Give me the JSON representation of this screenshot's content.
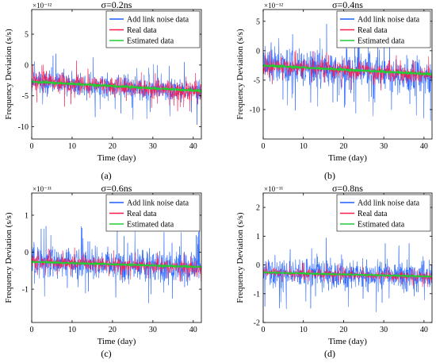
{
  "chart_data": [
    {
      "type": "line",
      "panel_label": "(a)",
      "title": "σ=0.2ns",
      "xlabel": "Time (day)",
      "ylabel": "Frequency Deviation (s/s)",
      "multiplier": "×10⁻¹²",
      "xlim": [
        0,
        42
      ],
      "ylim": [
        -12,
        9
      ],
      "xticks": [
        0,
        10,
        20,
        30,
        40
      ],
      "yticks": [
        -10,
        -5,
        0,
        5
      ],
      "legend_position": "top-right",
      "series": [
        {
          "name": "Add link noise data",
          "color": "#1f5fff",
          "x": [
            0,
            42
          ],
          "y_trend": [
            -2.6,
            -4.4
          ],
          "spread": 2.7,
          "spike": 4.5
        },
        {
          "name": "Real data",
          "color": "#ff1a4d",
          "x": [
            0,
            42
          ],
          "y_trend": [
            -2.6,
            -4.4
          ],
          "spread": 2.2,
          "spike": 3.2
        },
        {
          "name": "Estimated data",
          "color": "#22cc33",
          "x": [
            0,
            42
          ],
          "y_trend": [
            -2.7,
            -4.2
          ],
          "spread": 0.18,
          "spike": 0.25
        }
      ]
    },
    {
      "type": "line",
      "panel_label": "(b)",
      "title": "σ=0.4ns",
      "xlabel": "Time (day)",
      "ylabel": "Frequency Deviation (s/s)",
      "multiplier": "×10⁻¹²",
      "xlim": [
        0,
        42
      ],
      "ylim": [
        -15,
        7
      ],
      "xticks": [
        0,
        10,
        20,
        30,
        40
      ],
      "yticks": [
        -10,
        -5,
        0,
        5
      ],
      "legend_position": "top-right",
      "series": [
        {
          "name": "Add link noise data",
          "color": "#1f5fff",
          "x": [
            0,
            42
          ],
          "y_trend": [
            -2.4,
            -4.2
          ],
          "spread": 4.5,
          "spike": 6.5
        },
        {
          "name": "Real data",
          "color": "#ff1a4d",
          "x": [
            0,
            42
          ],
          "y_trend": [
            -2.4,
            -4.2
          ],
          "spread": 2.0,
          "spike": 2.8
        },
        {
          "name": "Estimated data",
          "color": "#22cc33",
          "x": [
            0,
            42
          ],
          "y_trend": [
            -2.5,
            -4.0
          ],
          "spread": 0.2,
          "spike": 0.25
        }
      ]
    },
    {
      "type": "line",
      "panel_label": "(c)",
      "title": "σ=0.6ns",
      "xlabel": "Time (day)",
      "ylabel": "Frequency Deviation (s/s)",
      "multiplier": "×10⁻¹¹",
      "xlim": [
        0,
        42
      ],
      "ylim": [
        -1.9,
        1.6
      ],
      "xticks": [
        0,
        10,
        20,
        30,
        40
      ],
      "yticks": [
        -1,
        0,
        1
      ],
      "legend_position": "top-right",
      "series": [
        {
          "name": "Add link noise data",
          "color": "#1f5fff",
          "x": [
            0,
            42
          ],
          "y_trend": [
            -0.25,
            -0.42
          ],
          "spread": 0.6,
          "spike": 0.85
        },
        {
          "name": "Real data",
          "color": "#ff1a4d",
          "x": [
            0,
            42
          ],
          "y_trend": [
            -0.25,
            -0.42
          ],
          "spread": 0.25,
          "spike": 0.35
        },
        {
          "name": "Estimated data",
          "color": "#22cc33",
          "x": [
            0,
            42
          ],
          "y_trend": [
            -0.26,
            -0.4
          ],
          "spread": 0.025,
          "spike": 0.03
        }
      ]
    },
    {
      "type": "line",
      "panel_label": "(d)",
      "title": "σ=0.8ns",
      "xlabel": "Time (day)",
      "ylabel": "Frequency Deviation (s/s)",
      "multiplier": "×10⁻¹¹",
      "xlim": [
        0,
        42
      ],
      "ylim": [
        -2,
        2.5
      ],
      "xticks": [
        0,
        10,
        20,
        30,
        40
      ],
      "yticks": [
        -2,
        -1,
        0,
        1,
        2
      ],
      "legend_position": "top-right",
      "series": [
        {
          "name": "Add link noise data",
          "color": "#1f5fff",
          "x": [
            0,
            42
          ],
          "y_trend": [
            -0.25,
            -0.42
          ],
          "spread": 0.75,
          "spike": 1.1
        },
        {
          "name": "Real data",
          "color": "#ff1a4d",
          "x": [
            0,
            42
          ],
          "y_trend": [
            -0.25,
            -0.42
          ],
          "spread": 0.22,
          "spike": 0.3
        },
        {
          "name": "Estimated data",
          "color": "#22cc33",
          "x": [
            0,
            42
          ],
          "y_trend": [
            -0.26,
            -0.4
          ],
          "spread": 0.025,
          "spike": 0.03
        }
      ]
    }
  ]
}
